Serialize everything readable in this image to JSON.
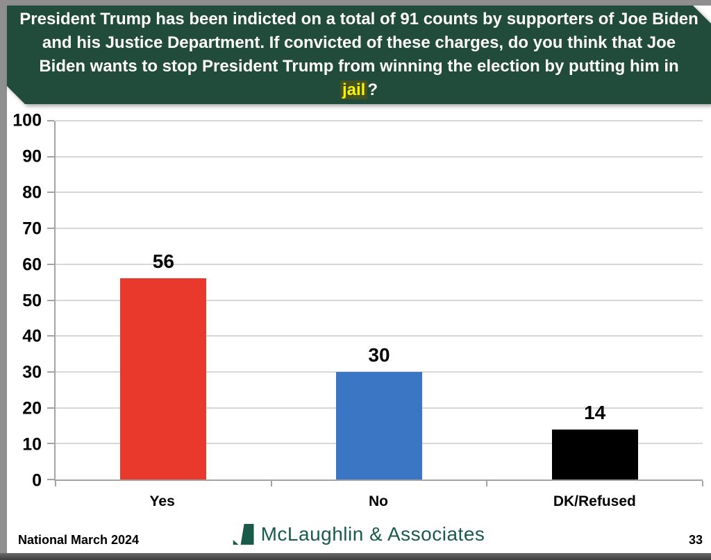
{
  "header": {
    "bg": "#214b3a",
    "text_color": "#ffffff",
    "question_before": "President Trump has been indicted on a total of 91 counts by supporters of Joe Biden and his Justice Department. If convicted of these charges, do you think that Joe Biden wants to stop President Trump from winning the election by putting him in ",
    "highlight_word": "jail",
    "question_after": "?",
    "highlight_bg": "#445220",
    "highlight_color": "#f8f400"
  },
  "chart_data": {
    "type": "bar",
    "title": "",
    "xlabel": "",
    "ylabel": "",
    "categories": [
      "Yes",
      "No",
      "DK/Refused"
    ],
    "values": [
      56,
      30,
      14
    ],
    "bar_colors": [
      "#e8392c",
      "#3b76c4",
      "#000000"
    ],
    "ylim": [
      0,
      100
    ],
    "yticks": [
      0,
      10,
      20,
      30,
      40,
      50,
      60,
      70,
      80,
      90,
      100
    ],
    "grid": true,
    "legend": false
  },
  "footer": {
    "left_label": "National March 2024",
    "logo_text": "McLaughlin & Associates",
    "logo_color": "#1a5a4a",
    "page_number": "33"
  }
}
